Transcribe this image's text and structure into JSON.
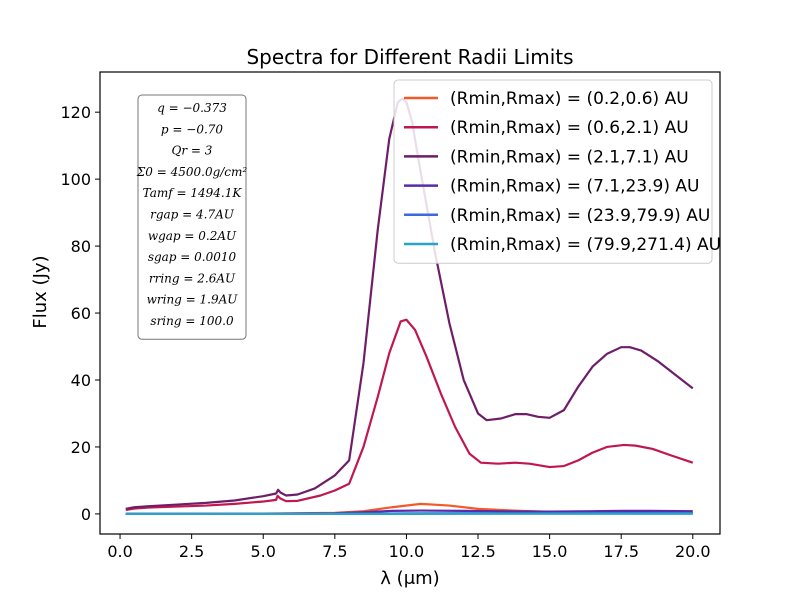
{
  "chart_data": {
    "type": "line",
    "title": "Spectra for Different Radii Limits",
    "xlabel": "λ (μm)",
    "ylabel": "Flux (Jy)",
    "xlim": [
      -0.7,
      20.95
    ],
    "ylim": [
      -6,
      132
    ],
    "xticks": [
      "0.0",
      "2.5",
      "5.0",
      "7.5",
      "10.0",
      "12.5",
      "15.0",
      "17.5",
      "20.0"
    ],
    "yticks": [
      "0",
      "20",
      "40",
      "60",
      "80",
      "100",
      "120"
    ],
    "grid": false,
    "legend_position": "top-right",
    "series": [
      {
        "name": "(Rmin,Rmax) = (0.2,0.6) AU",
        "color": "#f4592a",
        "points": [
          [
            0.2,
            0
          ],
          [
            5,
            0.1
          ],
          [
            7.5,
            0.3
          ],
          [
            8.5,
            0.8
          ],
          [
            9.5,
            2.0
          ],
          [
            10.5,
            3.0
          ],
          [
            11.5,
            2.5
          ],
          [
            12.5,
            1.5
          ],
          [
            14,
            0.9
          ],
          [
            15,
            0.6
          ],
          [
            17.5,
            0.4
          ],
          [
            20,
            0.3
          ]
        ]
      },
      {
        "name": "(Rmin,Rmax) = (0.6,2.1) AU",
        "color": "#c0174f",
        "points": [
          [
            0.2,
            1.2
          ],
          [
            0.5,
            1.6
          ],
          [
            1,
            1.9
          ],
          [
            2,
            2.2
          ],
          [
            3,
            2.5
          ],
          [
            4,
            3.0
          ],
          [
            5,
            3.7
          ],
          [
            5.45,
            4.2
          ],
          [
            5.5,
            5.4
          ],
          [
            5.6,
            4.6
          ],
          [
            5.8,
            3.8
          ],
          [
            6.2,
            3.9
          ],
          [
            7,
            5.5
          ],
          [
            7.5,
            7.0
          ],
          [
            8,
            9.0
          ],
          [
            8.5,
            20
          ],
          [
            9,
            35
          ],
          [
            9.4,
            48
          ],
          [
            9.8,
            57.5
          ],
          [
            10,
            58
          ],
          [
            10.3,
            55
          ],
          [
            10.7,
            47
          ],
          [
            11.2,
            36
          ],
          [
            11.7,
            26
          ],
          [
            12.2,
            18
          ],
          [
            12.6,
            15.3
          ],
          [
            13.2,
            15.0
          ],
          [
            13.8,
            15.3
          ],
          [
            14.3,
            15.0
          ],
          [
            15,
            14.0
          ],
          [
            15.5,
            14.3
          ],
          [
            16,
            16
          ],
          [
            16.5,
            18.3
          ],
          [
            17,
            20
          ],
          [
            17.6,
            20.6
          ],
          [
            18,
            20.4
          ],
          [
            18.6,
            19.4
          ],
          [
            19.2,
            17.6
          ],
          [
            20,
            15.3
          ]
        ]
      },
      {
        "name": "(Rmin,Rmax) = (2.1,7.1) AU",
        "color": "#6e1e68",
        "points": [
          [
            0.2,
            1.5
          ],
          [
            0.5,
            2.0
          ],
          [
            1,
            2.3
          ],
          [
            2,
            2.8
          ],
          [
            3,
            3.3
          ],
          [
            4,
            4.0
          ],
          [
            5,
            5.3
          ],
          [
            5.45,
            6.1
          ],
          [
            5.52,
            7.2
          ],
          [
            5.6,
            6.4
          ],
          [
            5.8,
            5.5
          ],
          [
            6.2,
            5.8
          ],
          [
            6.8,
            7.6
          ],
          [
            7.5,
            11.5
          ],
          [
            8,
            16
          ],
          [
            8.5,
            45
          ],
          [
            9,
            85
          ],
          [
            9.4,
            112
          ],
          [
            9.7,
            123
          ],
          [
            9.85,
            124
          ],
          [
            10,
            123
          ],
          [
            10.2,
            117
          ],
          [
            10.5,
            102
          ],
          [
            11,
            78
          ],
          [
            11.5,
            57
          ],
          [
            12,
            40
          ],
          [
            12.5,
            30
          ],
          [
            12.8,
            28.0
          ],
          [
            13.3,
            28.5
          ],
          [
            13.8,
            29.8
          ],
          [
            14.2,
            29.8
          ],
          [
            14.6,
            29.0
          ],
          [
            15,
            28.7
          ],
          [
            15.5,
            31
          ],
          [
            16,
            38
          ],
          [
            16.5,
            44
          ],
          [
            17,
            47.8
          ],
          [
            17.5,
            49.8
          ],
          [
            17.8,
            49.8
          ],
          [
            18.2,
            48.8
          ],
          [
            18.8,
            45.5
          ],
          [
            19.4,
            41.5
          ],
          [
            20,
            37.5
          ]
        ]
      },
      {
        "name": "(Rmin,Rmax) = (7.1,23.9) AU",
        "color": "#5a2ba8",
        "points": [
          [
            0.2,
            0
          ],
          [
            5,
            0.05
          ],
          [
            7.5,
            0.2
          ],
          [
            8.5,
            0.5
          ],
          [
            9.5,
            0.9
          ],
          [
            10.5,
            1.0
          ],
          [
            12,
            0.9
          ],
          [
            13.5,
            0.75
          ],
          [
            15,
            0.7
          ],
          [
            16.5,
            0.8
          ],
          [
            17.5,
            0.9
          ],
          [
            18.5,
            0.9
          ],
          [
            20,
            0.8
          ]
        ]
      },
      {
        "name": "(Rmin,Rmax) = (23.9,79.9) AU",
        "color": "#3d68e0",
        "points": [
          [
            0.2,
            0
          ],
          [
            5,
            0
          ],
          [
            8,
            0.05
          ],
          [
            10,
            0.15
          ],
          [
            12,
            0.2
          ],
          [
            15,
            0.2
          ],
          [
            17.5,
            0.25
          ],
          [
            20,
            0.25
          ]
        ]
      },
      {
        "name": "(Rmin,Rmax) = (79.9,271.4) AU",
        "color": "#2ba2c8",
        "points": [
          [
            0.2,
            0
          ],
          [
            5,
            0
          ],
          [
            10,
            0.02
          ],
          [
            15,
            0.03
          ],
          [
            20,
            0.05
          ]
        ]
      }
    ],
    "annotation": {
      "lines": [
        "q = −0.373",
        "p = −0.70",
        "Qr = 3",
        "Σ0 = 4500.0g/cm²",
        "Tamf = 1494.1K",
        "rgap = 4.7AU",
        "wgap = 0.2AU",
        "sgap = 0.0010",
        "rring = 2.6AU",
        "wring = 1.9AU",
        "sring = 100.0"
      ]
    }
  }
}
